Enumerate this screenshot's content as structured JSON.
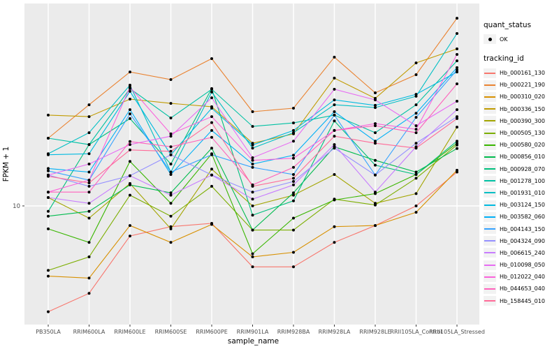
{
  "figure": {
    "background": "#FFFFFF",
    "panel_bg": "#EBEBEB",
    "grid_color": "#FFFFFF",
    "tick_color": "#333333",
    "axis_text_color": "#4D4D4D",
    "axis_title_color": "#000000",
    "point_color": "#000000"
  },
  "axes": {
    "x_title": "sample_name",
    "y_title": "FPKM + 1",
    "y_tick_label": "10"
  },
  "legend": {
    "quant_status_title": "quant_status",
    "quant_status_items": [
      {
        "label": "OK",
        "marker": "point-icon"
      }
    ],
    "tracking_title": "tracking_id"
  },
  "chart_data": {
    "type": "line",
    "title": "",
    "xlabel": "sample_name",
    "ylabel": "FPKM + 1",
    "y_scale": "log10",
    "y_breaks": [
      10
    ],
    "ylim": [
      2.5,
      95
    ],
    "grid": "vertical-per-category-plus-y-break",
    "legend_position": "right",
    "point_marker": "black-filled-dot (quant_status = OK)",
    "categories": [
      "PB350LA",
      "RRIM600LA",
      "RRIM600LE",
      "RRIM600SE",
      "RRIM600PE",
      "RRIM901LA",
      "RRIM928BA",
      "RRIM928LA",
      "RRIM928LE",
      "RRII105LA_Control",
      "RRII105LA_Stressed"
    ],
    "series": [
      {
        "name": "Hb_000161_130",
        "color": "#F8766D",
        "values": [
          3.0,
          3.7,
          7.1,
          7.9,
          8.2,
          5.0,
          5.0,
          6.6,
          8.0,
          10.0,
          14.7
        ]
      },
      {
        "name": "Hb_000221_190",
        "color": "#EA8331",
        "values": [
          21.6,
          31.6,
          45.9,
          42.1,
          53.4,
          29.2,
          30.4,
          54.3,
          36.2,
          44.5,
          84.6
        ]
      },
      {
        "name": "Hb_000310_020",
        "color": "#D89000",
        "values": [
          4.5,
          4.4,
          8.0,
          6.6,
          8.1,
          5.6,
          5.9,
          7.9,
          8.0,
          9.3,
          15.0
        ]
      },
      {
        "name": "Hb_000336_150",
        "color": "#C09B00",
        "values": [
          28.1,
          27.6,
          33.7,
          32.1,
          30.9,
          20.4,
          22.7,
          42.8,
          34.0,
          50.9,
          59.7
        ]
      },
      {
        "name": "Hb_000390_300",
        "color": "#A3A500",
        "values": [
          11.0,
          8.7,
          12.9,
          7.7,
          15.2,
          10.0,
          11.3,
          14.3,
          10.3,
          11.5,
          24.5
        ]
      },
      {
        "name": "Hb_000505_130",
        "color": "#7CAE00",
        "values": [
          4.8,
          5.6,
          11.3,
          8.9,
          12.5,
          7.6,
          7.6,
          10.8,
          10.1,
          13.7,
          20.0
        ]
      },
      {
        "name": "Hb_000580_020",
        "color": "#39B600",
        "values": [
          7.7,
          6.6,
          16.6,
          10.3,
          18.1,
          5.8,
          8.7,
          10.7,
          11.5,
          14.3,
          20.4
        ]
      },
      {
        "name": "Hb_000856_010",
        "color": "#00BB4E",
        "values": [
          8.9,
          9.4,
          12.7,
          11.6,
          19.3,
          7.6,
          11.6,
          19.6,
          16.8,
          14.7,
          19.2
        ]
      },
      {
        "name": "Hb_000928_070",
        "color": "#00BF7D",
        "values": [
          9.4,
          20.1,
          27.0,
          16.1,
          38.0,
          9.0,
          10.6,
          26.3,
          15.9,
          14.3,
          20.9
        ]
      },
      {
        "name": "Hb_001278_100",
        "color": "#00C1A3",
        "values": [
          21.6,
          20.1,
          38.0,
          27.2,
          37.7,
          24.7,
          25.7,
          28.1,
          23.0,
          31.6,
          52.1
        ]
      },
      {
        "name": "Hb_001931_010",
        "color": "#00BFC4",
        "values": [
          18.1,
          23.0,
          39.5,
          14.7,
          36.5,
          19.3,
          23.0,
          31.6,
          30.6,
          34.8,
          71.1
        ]
      },
      {
        "name": "Hb_003124_150",
        "color": "#00BAE0",
        "values": [
          17.9,
          18.1,
          36.8,
          17.9,
          30.4,
          20.0,
          23.6,
          33.4,
          31.4,
          35.6,
          45.9
        ]
      },
      {
        "name": "Hb_003582_060",
        "color": "#00B0F6",
        "values": [
          15.3,
          14.7,
          29.9,
          14.3,
          23.6,
          16.1,
          17.8,
          29.2,
          20.9,
          28.7,
          48.2
        ]
      },
      {
        "name": "Hb_004143_150",
        "color": "#35A2FF",
        "values": [
          14.9,
          13.4,
          28.5,
          14.7,
          17.9,
          15.5,
          14.3,
          28.1,
          14.2,
          27.4,
          47.0
        ]
      },
      {
        "name": "Hb_004324_090",
        "color": "#9590FF",
        "values": [
          14.2,
          12.5,
          14.1,
          17.9,
          14.2,
          11.7,
          13.2,
          19.3,
          14.2,
          20.4,
          27.6
        ]
      },
      {
        "name": "Hb_006615_240",
        "color": "#C77CFF",
        "values": [
          11.0,
          10.3,
          14.1,
          11.3,
          14.2,
          10.8,
          12.7,
          20.1,
          11.7,
          19.6,
          29.9
        ]
      },
      {
        "name": "Hb_010098_050",
        "color": "#E76BF3",
        "values": [
          14.2,
          16.1,
          20.1,
          22.1,
          34.2,
          17.3,
          20.9,
          37.7,
          33.4,
          24.9,
          32.9
        ]
      },
      {
        "name": "Hb_012022_040",
        "color": "#FA62DB",
        "values": [
          11.7,
          13.4,
          38.6,
          22.7,
          27.6,
          16.8,
          17.2,
          23.6,
          25.5,
          23.9,
          56.0
        ]
      },
      {
        "name": "Hb_044653_040",
        "color": "#FF62BC",
        "values": [
          11.7,
          11.7,
          20.8,
          19.6,
          21.8,
          12.7,
          15.5,
          23.6,
          24.9,
          23.0,
          40.1
        ]
      },
      {
        "name": "Hb_158445_010",
        "color": "#FF6A98",
        "values": [
          14.0,
          13.0,
          18.9,
          18.6,
          25.8,
          12.5,
          13.7,
          22.1,
          20.4,
          19.3,
          27.0
        ]
      }
    ]
  }
}
